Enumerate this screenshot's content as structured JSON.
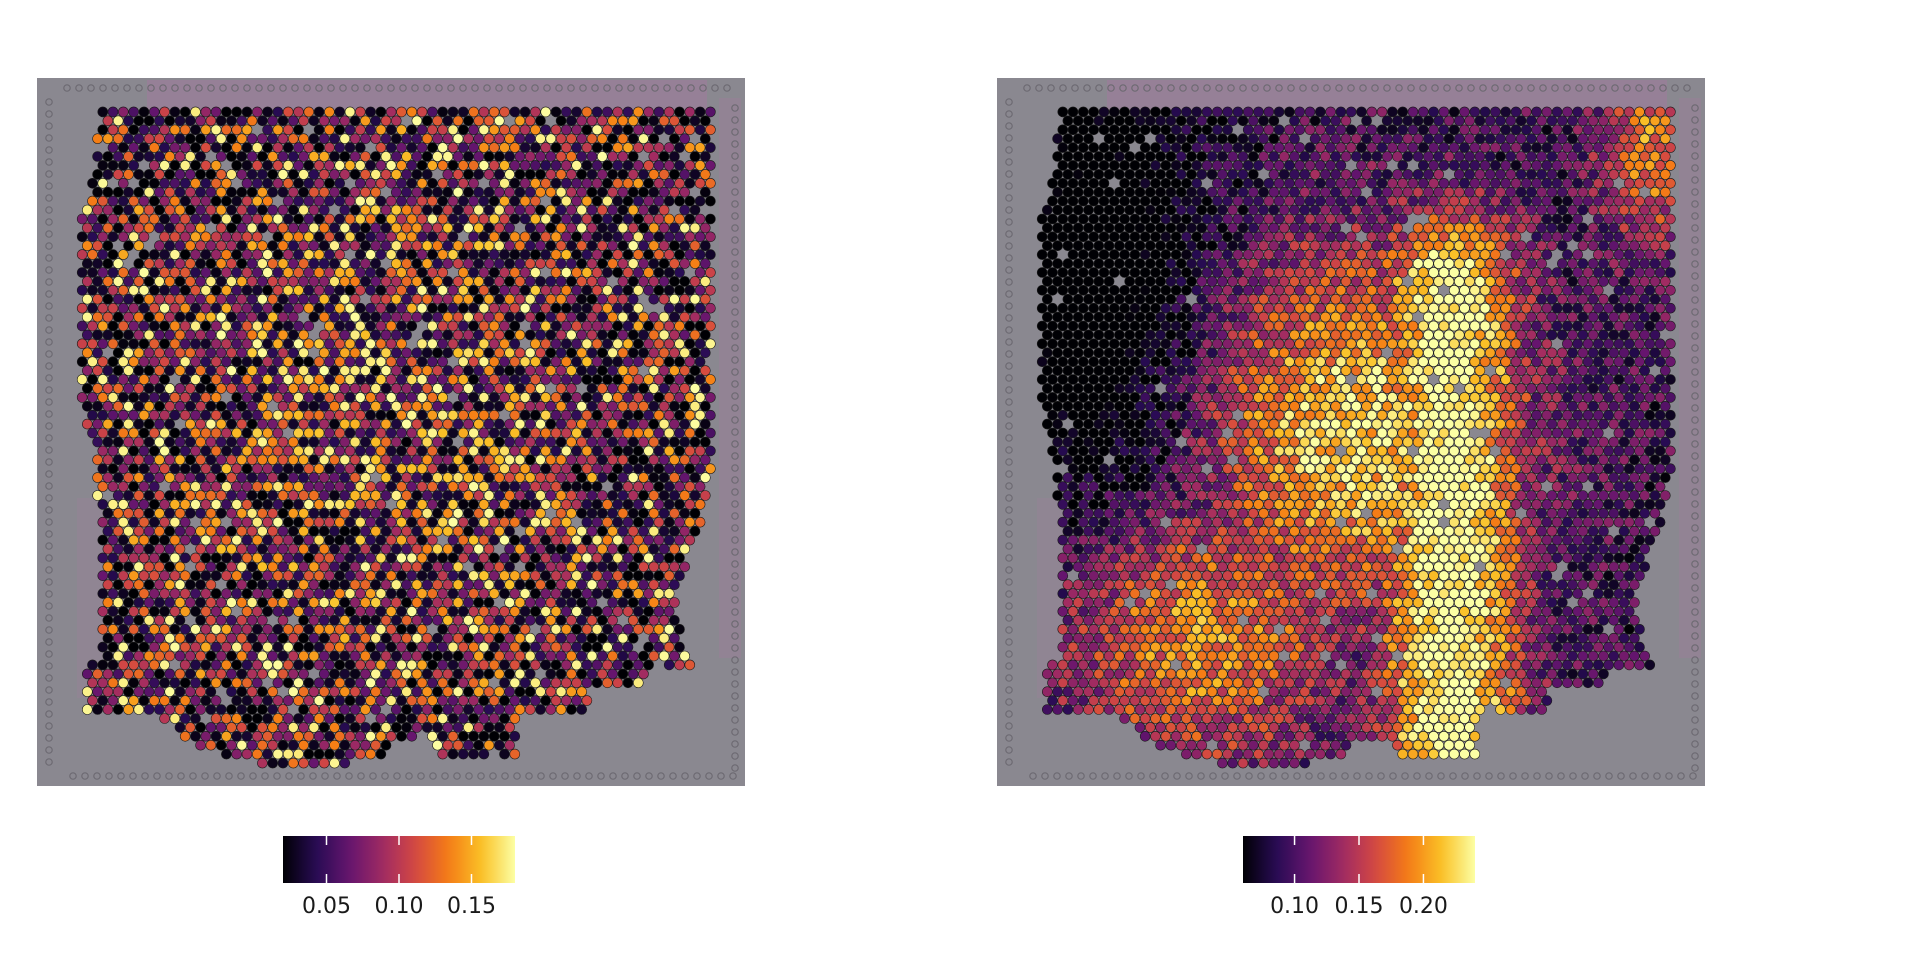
{
  "chart_data": [
    {
      "type": "heatmap",
      "title": "",
      "colormap": "inferno",
      "background": "tissue image",
      "colorbar": {
        "range": [
          0.02,
          0.18
        ],
        "ticks": [
          0.05,
          0.1,
          0.15
        ],
        "tick_labels": [
          "0.05",
          "0.10",
          "0.15"
        ],
        "placement": "bottom"
      },
      "pattern": "scattered spots, brighter in the middle of the tissue"
    },
    {
      "type": "heatmap",
      "title": "",
      "colormap": "inferno",
      "background": "tissue image",
      "colorbar": {
        "range": [
          0.06,
          0.24
        ],
        "ticks": [
          0.1,
          0.15,
          0.2
        ],
        "tick_labels": [
          "0.10",
          "0.15",
          "0.20"
        ],
        "placement": "bottom"
      },
      "pattern": "dark at the upper left, bright yellow band running down the center, orange at the lower left"
    }
  ]
}
